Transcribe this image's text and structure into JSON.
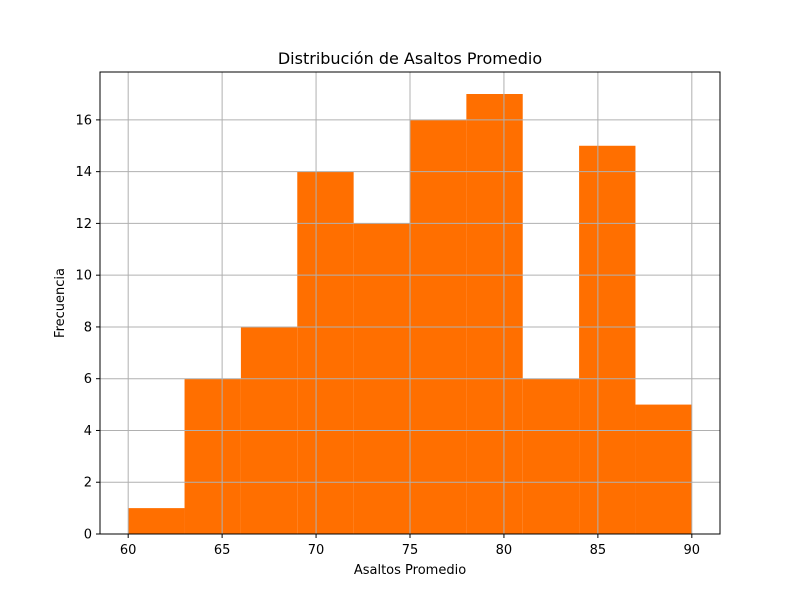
{
  "chart_data": {
    "type": "bar",
    "title": "Distribución de Asaltos Promedio",
    "xlabel": "Asaltos Promedio",
    "ylabel": "Frecuencia",
    "bins": [
      {
        "start": 60,
        "end": 63,
        "count": 1
      },
      {
        "start": 63,
        "end": 66,
        "count": 6
      },
      {
        "start": 66,
        "end": 69,
        "count": 8
      },
      {
        "start": 69,
        "end": 72,
        "count": 14
      },
      {
        "start": 72,
        "end": 75,
        "count": 12
      },
      {
        "start": 75,
        "end": 78,
        "count": 16
      },
      {
        "start": 78,
        "end": 81,
        "count": 17
      },
      {
        "start": 81,
        "end": 84,
        "count": 6
      },
      {
        "start": 84,
        "end": 87,
        "count": 15
      },
      {
        "start": 87,
        "end": 90,
        "count": 5
      }
    ],
    "xlim": [
      58.5,
      91.5
    ],
    "ylim": [
      0,
      17.85
    ],
    "xticks": [
      60,
      65,
      70,
      75,
      80,
      85,
      90
    ],
    "yticks": [
      0,
      2,
      4,
      6,
      8,
      10,
      12,
      14,
      16
    ],
    "grid": true,
    "bar_color": "#ff6f00"
  }
}
